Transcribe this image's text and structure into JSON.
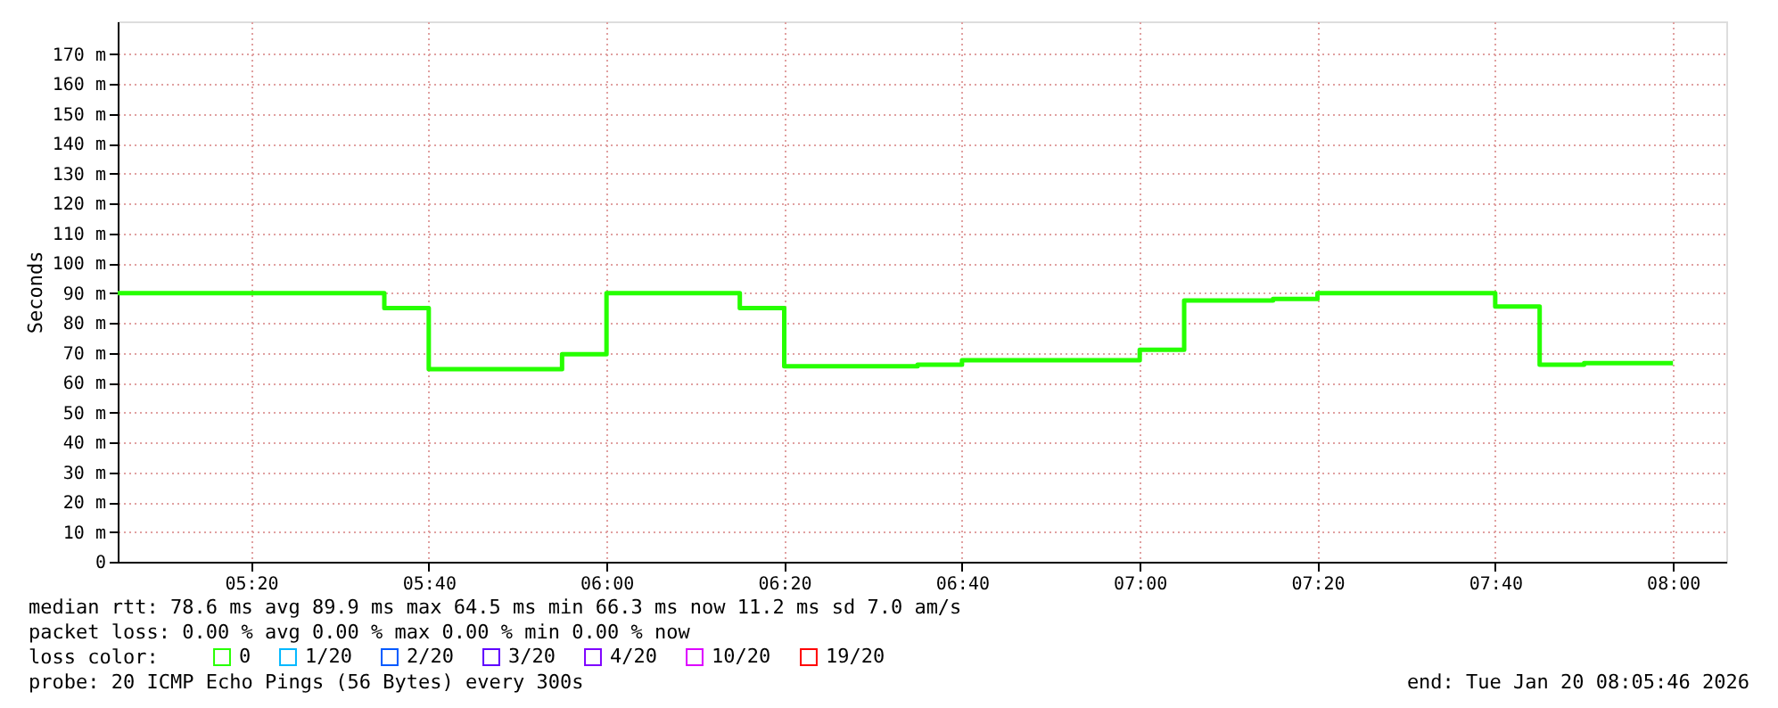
{
  "chart_data": {
    "type": "step",
    "ylabel": "Seconds",
    "x": [
      "2026-01-20T05:05",
      "2026-01-20T05:35",
      "2026-01-20T05:40",
      "2026-01-20T05:55",
      "2026-01-20T06:00",
      "2026-01-20T06:15",
      "2026-01-20T06:20",
      "2026-01-20T06:35",
      "2026-01-20T06:40",
      "2026-01-20T07:00",
      "2026-01-20T07:05",
      "2026-01-20T07:15",
      "2026-01-20T07:20",
      "2026-01-20T07:40",
      "2026-01-20T07:45",
      "2026-01-20T07:50",
      "2026-01-20T08:00"
    ],
    "series": [
      {
        "name": "0",
        "color": "#26ff00",
        "values": [
          90,
          85,
          64.5,
          69.5,
          90,
          85,
          65.5,
          66,
          67.5,
          71,
          87.5,
          88,
          90,
          85.5,
          66,
          66.5,
          66.5
        ]
      },
      {
        "name": "1/20",
        "color": "#00b8ff",
        "values": [
          null,
          null,
          null,
          null,
          null,
          null,
          null,
          null,
          null,
          null,
          null,
          null,
          null,
          null,
          null,
          null,
          null
        ]
      },
      {
        "name": "2/20",
        "color": "#0059ff",
        "values": [
          null,
          null,
          null,
          null,
          null,
          null,
          null,
          null,
          null,
          null,
          null,
          null,
          null,
          null,
          null,
          null,
          null
        ]
      },
      {
        "name": "3/20",
        "color": "#5e00ff",
        "values": [
          null,
          null,
          null,
          null,
          null,
          null,
          null,
          null,
          null,
          null,
          null,
          null,
          null,
          null,
          null,
          null,
          null
        ]
      },
      {
        "name": "4/20",
        "color": "#7e00ff",
        "values": [
          null,
          null,
          null,
          null,
          null,
          null,
          null,
          null,
          null,
          null,
          null,
          null,
          null,
          null,
          null,
          null,
          null
        ]
      },
      {
        "name": "10/20",
        "color": "#dd00ff",
        "values": [
          null,
          null,
          null,
          null,
          null,
          null,
          null,
          null,
          null,
          null,
          null,
          null,
          null,
          null,
          null,
          null,
          null
        ]
      },
      {
        "name": "19/20",
        "color": "#ff0000",
        "values": [
          null,
          null,
          null,
          null,
          null,
          null,
          null,
          null,
          null,
          null,
          null,
          null,
          null,
          null,
          null,
          null,
          null
        ]
      }
    ],
    "legend_title": "loss color:",
    "legend": "bottom",
    "xlim": [
      "2026-01-20T05:05",
      "2026-01-20T08:06"
    ],
    "xticks": [
      {
        "value": "2026-01-20T05:20",
        "label": "05:20"
      },
      {
        "value": "2026-01-20T05:40",
        "label": "05:40"
      },
      {
        "value": "2026-01-20T06:00",
        "label": "06:00"
      },
      {
        "value": "2026-01-20T06:20",
        "label": "06:20"
      },
      {
        "value": "2026-01-20T06:40",
        "label": "06:40"
      },
      {
        "value": "2026-01-20T07:00",
        "label": "07:00"
      },
      {
        "value": "2026-01-20T07:20",
        "label": "07:20"
      },
      {
        "value": "2026-01-20T07:40",
        "label": "07:40"
      },
      {
        "value": "2026-01-20T08:00",
        "label": "08:00"
      }
    ],
    "ylim": [
      0,
      181
    ],
    "yticks": [
      0,
      {
        "value": 10,
        "label": "10 m"
      },
      {
        "value": 20,
        "label": "20 m"
      },
      {
        "value": 30,
        "label": "30 m"
      },
      {
        "value": 40,
        "label": "40 m"
      },
      {
        "value": 50,
        "label": "50 m"
      },
      {
        "value": 60,
        "label": "60 m"
      },
      {
        "value": 70,
        "label": "70 m"
      },
      {
        "value": 80,
        "label": "80 m"
      },
      {
        "value": 90,
        "label": "90 m"
      },
      {
        "value": 100,
        "label": "100 m"
      },
      {
        "value": 110,
        "label": "110 m"
      },
      {
        "value": 120,
        "label": "120 m"
      },
      {
        "value": 130,
        "label": "130 m"
      },
      {
        "value": 140,
        "label": "140 m"
      },
      {
        "value": 150,
        "label": "150 m"
      },
      {
        "value": 160,
        "label": "160 m"
      },
      {
        "value": 170,
        "label": "170 m"
      }
    ],
    "grid": true,
    "line_style": "solid",
    "annotations": [
      "median rtt:  78.6 ms avg  89.9 ms max  64.5 ms min  66.3 ms now  11.2 ms sd  7.0   am/s",
      "packet loss: 0.00 % avg  0.00 % max  0.00 % min  0.00 % now",
      "probe:       20 ICMP Echo Pings (56 Bytes) every 300s",
      "end: Tue Jan 20 08:05:46 2026"
    ]
  }
}
